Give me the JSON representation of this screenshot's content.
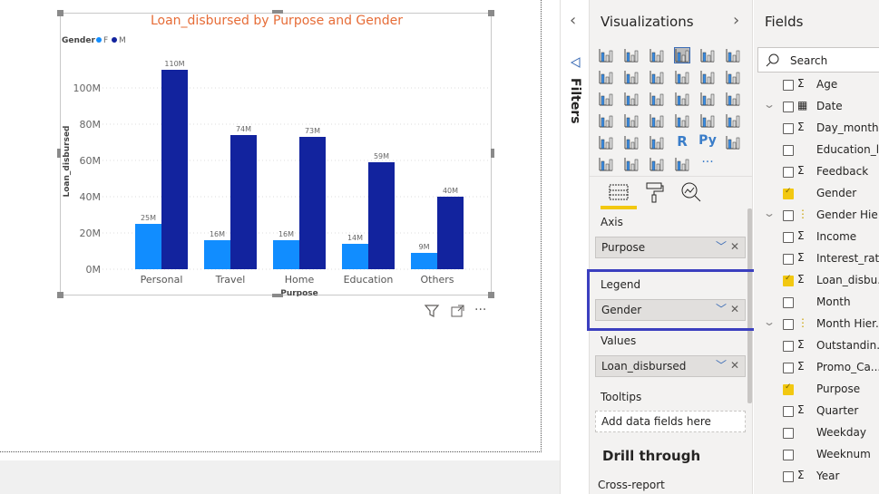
{
  "chart_data": {
    "type": "bar",
    "title": "Loan_disbursed by Purpose and Gender",
    "xlabel": "Purpose",
    "ylabel": "Loan_disbursed",
    "legend_title": "Gender",
    "legend_position": "top-left",
    "categories": [
      "Personal",
      "Travel",
      "Home",
      "Education",
      "Others"
    ],
    "series": [
      {
        "name": "F",
        "color": "#118dff",
        "values": [
          25,
          16,
          16,
          14,
          9
        ],
        "labels": [
          "25M",
          "16M",
          "16M",
          "14M",
          "9M"
        ]
      },
      {
        "name": "M",
        "color": "#12239e",
        "values": [
          110,
          74,
          73,
          59,
          40
        ],
        "labels": [
          "110M",
          "74M",
          "73M",
          "59M",
          "40M"
        ]
      }
    ],
    "yticks": [
      "0M",
      "20M",
      "40M",
      "60M",
      "80M",
      "100M"
    ],
    "ylim": [
      0,
      110
    ],
    "grid": true,
    "title_color": "#e66c37"
  },
  "visual_header": {
    "filter_icon": "filter-icon",
    "focus_icon": "focus-mode-icon",
    "more": "···"
  },
  "filters": {
    "label": "Filters",
    "collapse": "‹"
  },
  "visualizations": {
    "title": "Visualizations",
    "expand": "›",
    "icons": [
      "stacked-bar",
      "stacked-column",
      "clustered-bar",
      "clustered-column",
      "100-stacked-bar",
      "100-stacked-column",
      "line",
      "area",
      "stacked-area",
      "line-and-column",
      "line-and-clustered-column",
      "ribbon",
      "waterfall",
      "funnel",
      "scatter",
      "pie",
      "donut",
      "treemap",
      "map",
      "filled-map",
      "gauge",
      "card",
      "multi-row-card",
      "kpi",
      "slicer",
      "table",
      "matrix",
      "r-visual",
      "python-visual",
      "key-influencers",
      "decomposition-tree",
      "qa",
      "arcgis",
      "power-apps",
      "more"
    ],
    "r_text": "R",
    "py_text": "Py",
    "more_text": "···",
    "tabs": [
      "fields-tab",
      "format-tab",
      "analytics-tab"
    ],
    "wells": {
      "axis_label": "Axis",
      "axis_value": "Purpose",
      "legend_label": "Legend",
      "legend_value": "Gender",
      "values_label": "Values",
      "values_value": "Loan_disbursed",
      "tooltips_label": "Tooltips",
      "tooltips_placeholder": "Add data fields here"
    },
    "drill_through": "Drill through",
    "cross_report": "Cross-report",
    "highlight_color": "#3b3fbf"
  },
  "fields": {
    "title": "Fields",
    "search_placeholder": "Search",
    "items": [
      {
        "label": "Age",
        "sigma": true,
        "checked": false
      },
      {
        "label": "Date",
        "icon": "calendar",
        "expand": true,
        "checked": false
      },
      {
        "label": "Day_month",
        "sigma": true,
        "checked": false
      },
      {
        "label": "Education_l...",
        "checked": false
      },
      {
        "label": "Feedback",
        "sigma": true,
        "checked": false
      },
      {
        "label": "Gender",
        "checked": true
      },
      {
        "label": "Gender Hie...",
        "icon": "hierarchy",
        "expand": true,
        "checked": false
      },
      {
        "label": "Income",
        "sigma": true,
        "checked": false
      },
      {
        "label": "Interest_rate",
        "sigma": true,
        "checked": false
      },
      {
        "label": "Loan_disbu...",
        "sigma": true,
        "checked": true
      },
      {
        "label": "Month",
        "checked": false
      },
      {
        "label": "Month Hier...",
        "icon": "hierarchy",
        "expand": true,
        "checked": false
      },
      {
        "label": "Outstandin...",
        "sigma": true,
        "checked": false
      },
      {
        "label": "Promo_Ca...",
        "sigma": true,
        "checked": false
      },
      {
        "label": "Purpose",
        "checked": true
      },
      {
        "label": "Quarter",
        "sigma": true,
        "checked": false
      },
      {
        "label": "Weekday",
        "checked": false
      },
      {
        "label": "Weeknum",
        "checked": false
      },
      {
        "label": "Year",
        "sigma": true,
        "checked": false
      }
    ]
  }
}
